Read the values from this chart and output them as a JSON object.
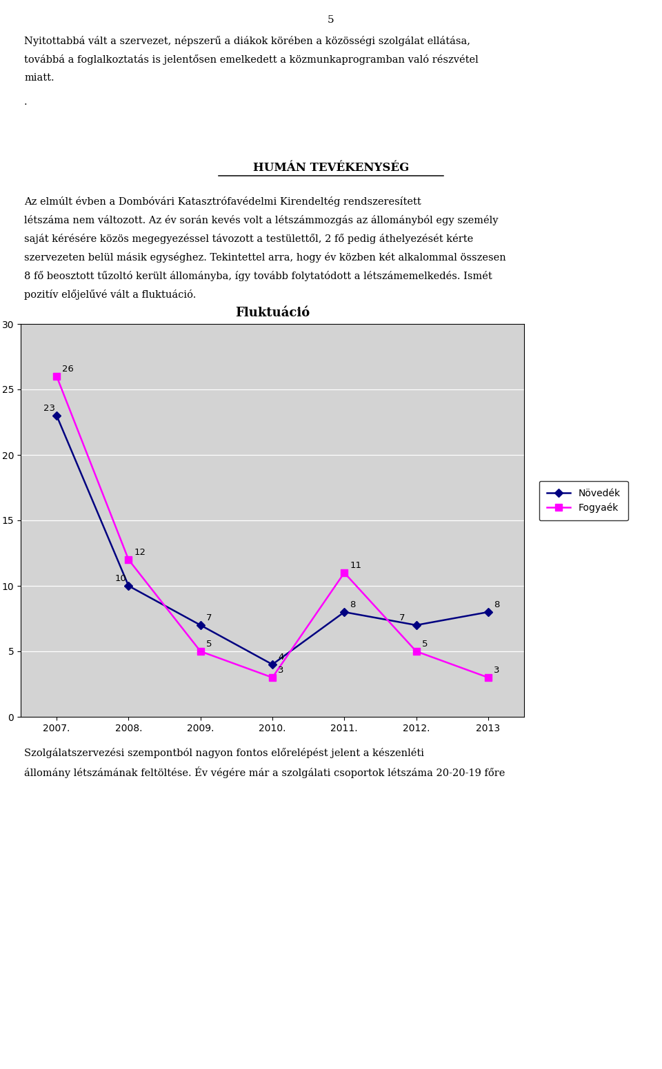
{
  "page_number": "5",
  "p1_lines": [
    "Nyitottabbá vált a szervezet, népszerű a diákok körében a közösségi szolgálat ellátása,",
    "továbbá a foglalkoztatás is jelentősen emelkedett a közmunkaprogramban való részvétel",
    "miatt."
  ],
  "dot": ".",
  "section_title": "HUMÁN TEVÉKENYSÉG",
  "p2_lines": [
    "Az elmúlt évben a Dombóvári Katasztrófavédelmi Kirendeltég rendszeresített",
    "létszáma nem változott. Az év során kevés volt a létszámmozgás az állományból egy személy",
    "saját kérésére közös megegyezéssel távozott a testülettől, 2 fő pedig áthelyezését kérte",
    "szervezeten belül másik egységhez. Tekintettel arra, hogy év közben két alkalommal összesen",
    "8 fő beosztott tűzoltó került állományba, így tovább folytatódott a létszámemelkedés. Ismét",
    "pozitív előjelűvé vált a fluktuáció."
  ],
  "chart_title": "Fluktuáció",
  "years": [
    "2007.",
    "2008.",
    "2009.",
    "2010.",
    "2011.",
    "2012.",
    "2013"
  ],
  "novdek": [
    23,
    10,
    7,
    4,
    8,
    7,
    8
  ],
  "fogyatek": [
    26,
    12,
    5,
    3,
    11,
    5,
    3
  ],
  "novdek_color": "#000080",
  "fogyatek_color": "#FF00FF",
  "legend_novdek": "Növedék",
  "legend_fogyatek": "Fogyaék",
  "ylim": [
    0,
    30
  ],
  "yticks": [
    0,
    5,
    10,
    15,
    20,
    25,
    30
  ],
  "chart_bg": "#D3D3D3",
  "p3_lines": [
    "Szolgálatszervezési szempontból nagyon fontos előrelépést jelent a készenléti",
    "állomány létszámának feltöltése. Év végére már a szolgálati csoportok létszáma 20-20-19 főre"
  ]
}
